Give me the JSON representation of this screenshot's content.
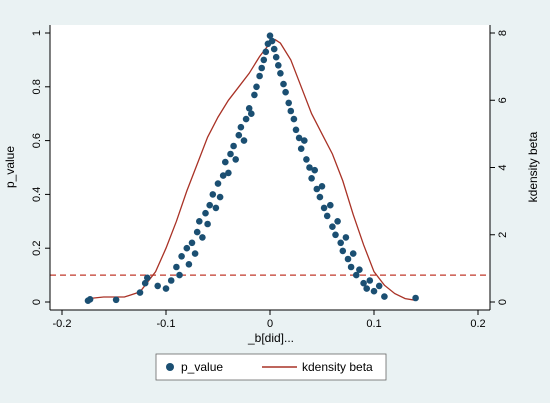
{
  "chart_data": {
    "type": "scatter",
    "xlabel": "_b[did]...",
    "ylabel_left": "p_value",
    "ylabel_right": "kdensity beta",
    "xlim": [
      -0.2,
      0.2
    ],
    "ylim_left": [
      0,
      1
    ],
    "ylim_right": [
      0,
      8
    ],
    "x_ticks": [
      -0.2,
      -0.1,
      0,
      0.1,
      0.2
    ],
    "x_tick_labels": [
      "-0.2",
      "-0.1",
      "0",
      "0.1",
      "0.2"
    ],
    "y_left_ticks": [
      0,
      0.2,
      0.4,
      0.6,
      0.8,
      1
    ],
    "y_left_tick_labels": [
      "0",
      "0.2",
      "0.4",
      "0.6",
      "0.8",
      "1"
    ],
    "y_right_ticks": [
      0,
      2,
      4,
      6,
      8
    ],
    "y_right_tick_labels": [
      "0",
      "2",
      "4",
      "6",
      "8"
    ],
    "reference_line": {
      "y": 0.1,
      "color": "#c0392b",
      "style": "dashed"
    },
    "grid": false,
    "legend_position": "bottom",
    "series": [
      {
        "name": "p_value",
        "kind": "scatter",
        "axis": "left",
        "color": "#1b4f72",
        "points": [
          [
            -0.175,
            0.005
          ],
          [
            -0.173,
            0.01
          ],
          [
            -0.148,
            0.008
          ],
          [
            -0.125,
            0.035
          ],
          [
            -0.12,
            0.07
          ],
          [
            -0.118,
            0.09
          ],
          [
            -0.108,
            0.06
          ],
          [
            -0.1,
            0.05
          ],
          [
            -0.095,
            0.08
          ],
          [
            -0.09,
            0.13
          ],
          [
            -0.087,
            0.1
          ],
          [
            -0.085,
            0.17
          ],
          [
            -0.08,
            0.2
          ],
          [
            -0.078,
            0.14
          ],
          [
            -0.075,
            0.22
          ],
          [
            -0.072,
            0.18
          ],
          [
            -0.07,
            0.26
          ],
          [
            -0.068,
            0.3
          ],
          [
            -0.065,
            0.24
          ],
          [
            -0.062,
            0.33
          ],
          [
            -0.06,
            0.29
          ],
          [
            -0.058,
            0.36
          ],
          [
            -0.055,
            0.4
          ],
          [
            -0.052,
            0.35
          ],
          [
            -0.05,
            0.44
          ],
          [
            -0.048,
            0.39
          ],
          [
            -0.045,
            0.47
          ],
          [
            -0.043,
            0.52
          ],
          [
            -0.04,
            0.48
          ],
          [
            -0.038,
            0.55
          ],
          [
            -0.035,
            0.58
          ],
          [
            -0.033,
            0.53
          ],
          [
            -0.03,
            0.62
          ],
          [
            -0.028,
            0.65
          ],
          [
            -0.025,
            0.6
          ],
          [
            -0.023,
            0.68
          ],
          [
            -0.02,
            0.72
          ],
          [
            -0.018,
            0.7
          ],
          [
            -0.015,
            0.77
          ],
          [
            -0.013,
            0.8
          ],
          [
            -0.01,
            0.84
          ],
          [
            -0.008,
            0.87
          ],
          [
            -0.006,
            0.9
          ],
          [
            -0.004,
            0.93
          ],
          [
            -0.002,
            0.96
          ],
          [
            0.0,
            0.99
          ],
          [
            0.002,
            0.97
          ],
          [
            0.004,
            0.94
          ],
          [
            0.006,
            0.91
          ],
          [
            0.008,
            0.88
          ],
          [
            0.01,
            0.85
          ],
          [
            0.013,
            0.81
          ],
          [
            0.015,
            0.78
          ],
          [
            0.018,
            0.74
          ],
          [
            0.02,
            0.71
          ],
          [
            0.023,
            0.68
          ],
          [
            0.025,
            0.64
          ],
          [
            0.028,
            0.61
          ],
          [
            0.03,
            0.57
          ],
          [
            0.033,
            0.6
          ],
          [
            0.035,
            0.53
          ],
          [
            0.038,
            0.5
          ],
          [
            0.04,
            0.46
          ],
          [
            0.043,
            0.49
          ],
          [
            0.045,
            0.42
          ],
          [
            0.048,
            0.39
          ],
          [
            0.05,
            0.43
          ],
          [
            0.052,
            0.35
          ],
          [
            0.055,
            0.32
          ],
          [
            0.058,
            0.36
          ],
          [
            0.06,
            0.28
          ],
          [
            0.063,
            0.25
          ],
          [
            0.065,
            0.3
          ],
          [
            0.068,
            0.22
          ],
          [
            0.07,
            0.19
          ],
          [
            0.073,
            0.24
          ],
          [
            0.075,
            0.16
          ],
          [
            0.078,
            0.13
          ],
          [
            0.08,
            0.18
          ],
          [
            0.083,
            0.1
          ],
          [
            0.086,
            0.12
          ],
          [
            0.09,
            0.07
          ],
          [
            0.093,
            0.05
          ],
          [
            0.096,
            0.08
          ],
          [
            0.1,
            0.04
          ],
          [
            0.105,
            0.06
          ],
          [
            0.11,
            0.02
          ],
          [
            0.14,
            0.015
          ]
        ]
      },
      {
        "name": "kdensity beta",
        "kind": "line",
        "axis": "right",
        "color": "#a93226",
        "x": [
          -0.175,
          -0.16,
          -0.14,
          -0.125,
          -0.11,
          -0.1,
          -0.09,
          -0.08,
          -0.07,
          -0.06,
          -0.05,
          -0.04,
          -0.03,
          -0.02,
          -0.01,
          0.0,
          0.005,
          0.01,
          0.02,
          0.03,
          0.04,
          0.05,
          0.06,
          0.07,
          0.08,
          0.09,
          0.1,
          0.11,
          0.12,
          0.13,
          0.14
        ],
        "y": [
          0.1,
          0.15,
          0.15,
          0.3,
          0.9,
          1.6,
          2.4,
          3.3,
          4.1,
          4.9,
          5.5,
          6.0,
          6.4,
          6.8,
          7.3,
          7.7,
          7.8,
          7.7,
          7.2,
          6.4,
          5.6,
          5.0,
          4.4,
          3.6,
          2.6,
          1.7,
          0.9,
          0.5,
          0.25,
          0.1,
          0.05
        ]
      }
    ]
  }
}
